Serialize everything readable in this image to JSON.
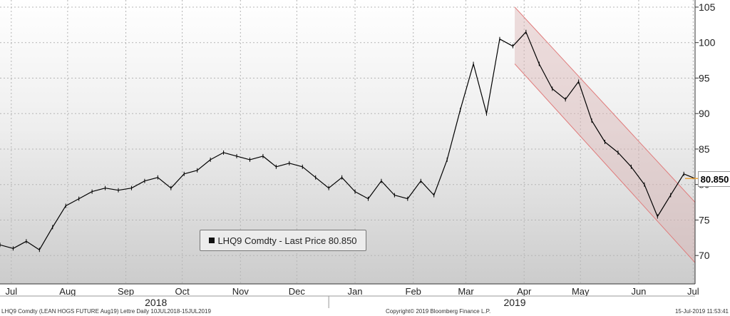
{
  "legend": {
    "label": "LHQ9 Comdty - Last Price 80.850"
  },
  "last_price_tag": "80.850",
  "footer": {
    "left": "LHQ9 Comdty (LEAN HOGS FUTURE  Aug19) Lettre  Daily 10JUL2018-15JUL2019",
    "center": "Copyright© 2019 Bloomberg Finance L.P.",
    "right": "15-Jul-2019 11:53:41"
  },
  "colors": {
    "line": "#000000",
    "channel_fill": "#d9b3b3",
    "channel_edge": "#e07a7a",
    "tag_line": "#e8a33c"
  },
  "chart_data": {
    "type": "line",
    "title": "",
    "xlabel": "",
    "ylabel": "",
    "ylim": [
      66,
      106
    ],
    "yticks": [
      70,
      75,
      80,
      85,
      90,
      95,
      100,
      105
    ],
    "grid": true,
    "legend_position": "bottom-center",
    "x_start": "2018-07-10",
    "x_end": "2019-07-15",
    "xticks": [
      {
        "label": "Jul",
        "date": "2018-07-16"
      },
      {
        "label": "Aug",
        "date": "2018-08-15"
      },
      {
        "label": "Sep",
        "date": "2018-09-15"
      },
      {
        "label": "Oct",
        "date": "2018-10-15"
      },
      {
        "label": "Nov",
        "date": "2018-11-15"
      },
      {
        "label": "Dec",
        "date": "2018-12-15"
      },
      {
        "label": "Jan",
        "date": "2019-01-15"
      },
      {
        "label": "Feb",
        "date": "2019-02-15"
      },
      {
        "label": "Mar",
        "date": "2019-03-15"
      },
      {
        "label": "Apr",
        "date": "2019-04-15"
      },
      {
        "label": "May",
        "date": "2019-05-15"
      },
      {
        "label": "Jun",
        "date": "2019-06-15"
      },
      {
        "label": "Jul",
        "date": "2019-07-14"
      }
    ],
    "years": [
      {
        "label": "2018",
        "date": "2018-10-01"
      },
      {
        "label": "2019",
        "date": "2019-04-10"
      }
    ],
    "year_divider_date": "2019-01-01",
    "series": [
      {
        "name": "LHQ9 Comdty - Last Price",
        "x": [
          "2018-07-10",
          "2018-07-17",
          "2018-07-24",
          "2018-07-31",
          "2018-08-07",
          "2018-08-14",
          "2018-08-21",
          "2018-08-28",
          "2018-09-04",
          "2018-09-11",
          "2018-09-18",
          "2018-09-25",
          "2018-10-02",
          "2018-10-09",
          "2018-10-16",
          "2018-10-23",
          "2018-10-30",
          "2018-11-06",
          "2018-11-13",
          "2018-11-20",
          "2018-11-27",
          "2018-12-04",
          "2018-12-11",
          "2018-12-18",
          "2018-12-25",
          "2019-01-01",
          "2019-01-08",
          "2019-01-15",
          "2019-01-22",
          "2019-01-29",
          "2019-02-05",
          "2019-02-12",
          "2019-02-19",
          "2019-02-26",
          "2019-03-05",
          "2019-03-12",
          "2019-03-19",
          "2019-03-26",
          "2019-04-02",
          "2019-04-09",
          "2019-04-16",
          "2019-04-23",
          "2019-04-30",
          "2019-05-07",
          "2019-05-14",
          "2019-05-21",
          "2019-05-28",
          "2019-06-04",
          "2019-06-11",
          "2019-06-18",
          "2019-06-25",
          "2019-07-02",
          "2019-07-09",
          "2019-07-15"
        ],
        "y": [
          71.5,
          71.0,
          72.0,
          70.8,
          74.0,
          77.0,
          78.0,
          79.0,
          79.5,
          79.2,
          79.5,
          80.5,
          81.0,
          79.5,
          81.5,
          82.0,
          83.5,
          84.5,
          84.0,
          83.5,
          84.0,
          82.5,
          83.0,
          82.5,
          81.0,
          79.5,
          81.0,
          79.0,
          78.0,
          80.5,
          78.5,
          78.0,
          80.5,
          78.5,
          83.5,
          90.5,
          97.0,
          90.0,
          100.5,
          99.5,
          101.5,
          97.0,
          93.5,
          92.0,
          94.5,
          89.0,
          86.0,
          84.5,
          82.5,
          80.0,
          75.5,
          78.5,
          81.5,
          80.85
        ]
      }
    ],
    "channel": {
      "upper": [
        {
          "x": "2019-04-10",
          "y": 105.0
        },
        {
          "x": "2019-07-15",
          "y": 77.5
        }
      ],
      "lower": [
        {
          "x": "2019-04-10",
          "y": 97.0
        },
        {
          "x": "2019-07-15",
          "y": 69.0
        }
      ]
    },
    "last_price": 80.85
  }
}
